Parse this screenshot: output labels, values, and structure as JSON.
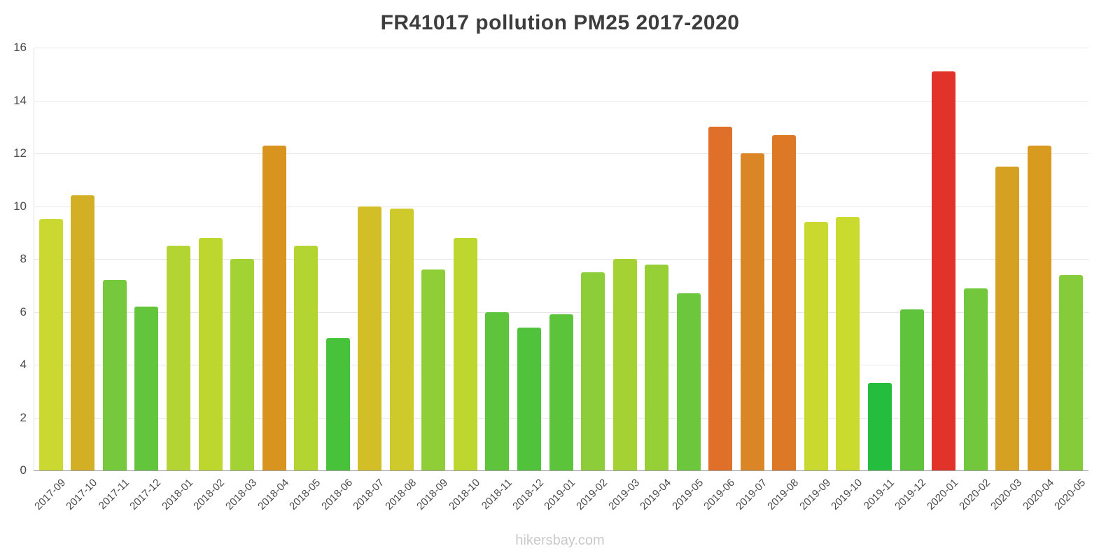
{
  "title": "FR41017 pollution PM25 2017-2020",
  "footer": "hikersbay.com",
  "chart_data": {
    "type": "bar",
    "title": "FR41017 pollution PM25 2017-2020",
    "xlabel": "",
    "ylabel": "",
    "ylim": [
      0,
      16
    ],
    "yticks": [
      0,
      2,
      4,
      6,
      8,
      10,
      12,
      14,
      16
    ],
    "grid": "horizontal",
    "legend": "none",
    "categories": [
      "2017-09",
      "2017-10",
      "2017-11",
      "2017-12",
      "2018-01",
      "2018-02",
      "2018-03",
      "2018-04",
      "2018-05",
      "2018-06",
      "2018-07",
      "2018-08",
      "2018-09",
      "2018-10",
      "2018-11",
      "2018-12",
      "2019-01",
      "2019-02",
      "2019-03",
      "2019-04",
      "2019-05",
      "2019-06",
      "2019-07",
      "2019-08",
      "2019-09",
      "2019-10",
      "2019-11",
      "2019-12",
      "2020-01",
      "2020-02",
      "2020-03",
      "2020-04",
      "2020-05"
    ],
    "values": [
      9.5,
      10.4,
      7.2,
      6.2,
      8.5,
      8.8,
      8.0,
      12.3,
      8.5,
      5.0,
      10.0,
      9.9,
      7.6,
      8.8,
      6.0,
      5.4,
      5.9,
      7.5,
      8.0,
      7.8,
      6.7,
      13.0,
      12.0,
      12.7,
      9.4,
      9.6,
      3.3,
      6.1,
      15.1,
      6.9,
      11.5,
      12.3,
      7.4
    ],
    "colors": [
      "#ccd832",
      "#d3af26",
      "#76c83d",
      "#63c53b",
      "#b3d432",
      "#bed72f",
      "#a3d234",
      "#d9941f",
      "#b4d431",
      "#47c23a",
      "#d2bf27",
      "#cfca2b",
      "#90ce38",
      "#bed72f",
      "#5ec43b",
      "#50c23b",
      "#5cc43b",
      "#8ccd39",
      "#a4d234",
      "#97cf37",
      "#6dc73d",
      "#e06f2a",
      "#da8526",
      "#dd7827",
      "#c9d930",
      "#cbda2f",
      "#25bd3e",
      "#5fc43b",
      "#e2332a",
      "#72c73d",
      "#d6a122",
      "#d89b20",
      "#86cb3a"
    ]
  }
}
